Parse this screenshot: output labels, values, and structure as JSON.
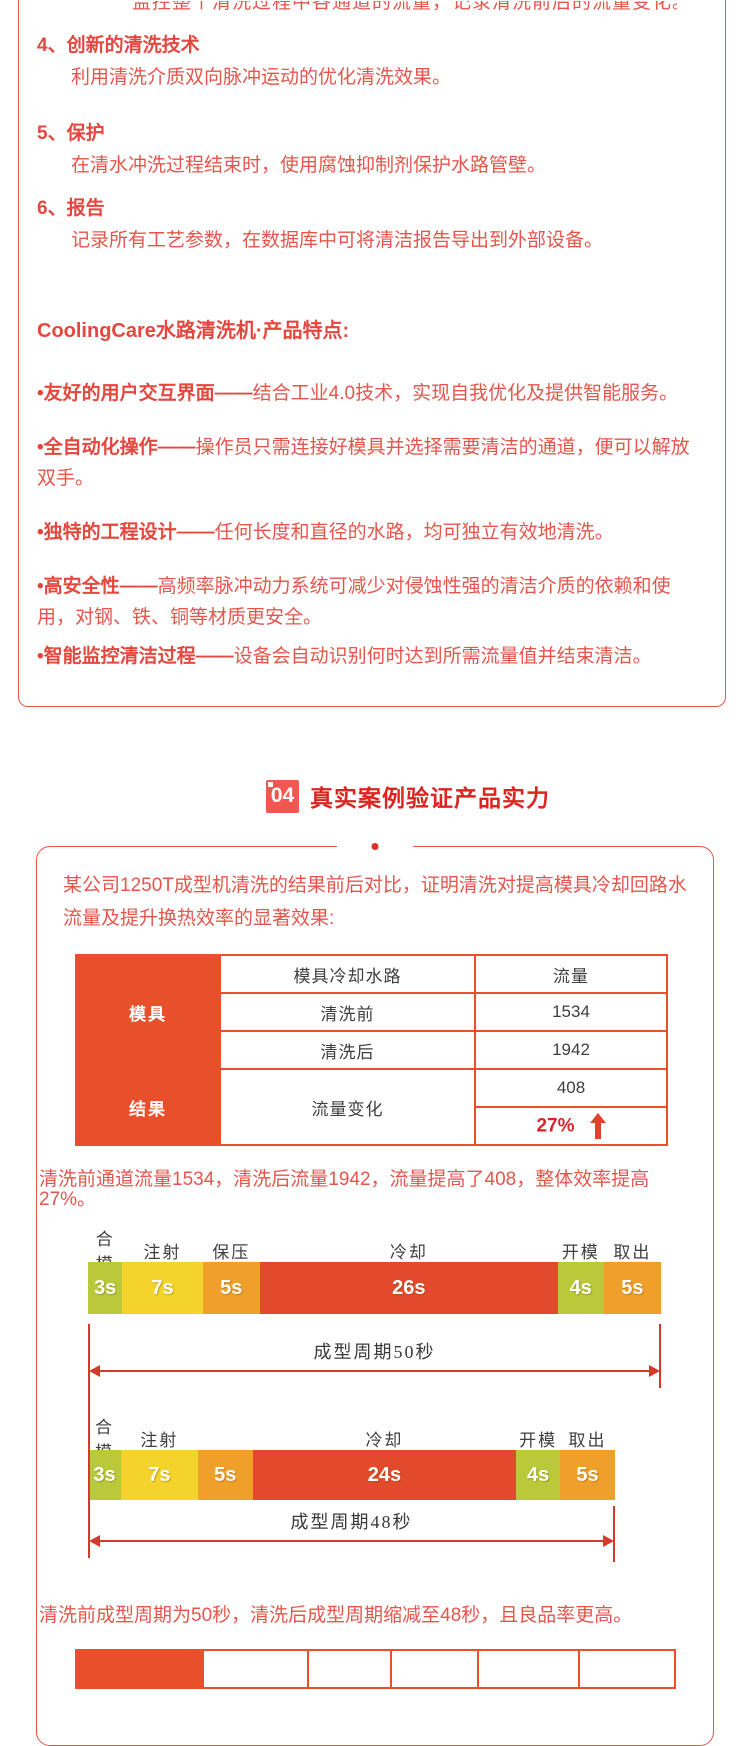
{
  "colors": {
    "accent_red": "#e8502b",
    "body_text_red": "#e4564c",
    "border_red": "#e2574e",
    "badge_red": "#f15750",
    "section_title_red": "#dc2420",
    "percent_red": "#d8232e",
    "gantt_green": "#b9c93a",
    "gantt_yellow": "#f4d32d",
    "gantt_orange": "#efa02b",
    "gantt_red": "#e24a2b"
  },
  "box1": {
    "clipped_line": "监控整个清洗过程中各通道的流量，记录清洗前后的流量变化。",
    "items": [
      {
        "title": "4、创新的清洗技术",
        "body": "利用清洗介质双向脉冲运动的优化清洗效果。"
      },
      {
        "title": "5、保护",
        "body": "在清水冲洗过程结束时，使用腐蚀抑制剂保护水路管壁。"
      },
      {
        "title": "6、报告",
        "body": "记录所有工艺参数，在数据库中可将清洁报告导出到外部设备。"
      }
    ],
    "features_title": "CoolingCare水路清洗机·产品特点:",
    "features": [
      {
        "lead": "•友好的用户交互界面——",
        "rest": "结合工业4.0技术，实现自我优化及提供智能服务。"
      },
      {
        "lead": "•全自动化操作——",
        "rest": "操作员只需连接好模具并选择需要清洁的通道，便可以解放双手。"
      },
      {
        "lead": "•独特的工程设计——",
        "rest": "任何长度和直径的水路，均可独立有效地清洗。"
      },
      {
        "lead": "•高安全性——",
        "rest": "高频率脉冲动力系统可减少对侵蚀性强的清洁介质的依赖和使用，对钢、铁、铜等材质更安全。"
      },
      {
        "lead": "•智能监控清洁过程——",
        "rest": "设备会自动识别何时达到所需流量值并结束清洁。"
      }
    ]
  },
  "section_header": {
    "badge": "04",
    "title": "真实案例验证产品实力"
  },
  "case_box": {
    "intro": "某公司1250T成型机清洗的结果前后对比，证明清洗对提高模具冷却回路水流量及提升换热效率的显著效果:",
    "flow_summary": "清洗前通道流量1534，清洗后流量1942，流量提高了408，整体效率提高27%。",
    "cycle_summary": "清洗前成型周期为50秒，清洗后成型周期缩减至48秒，且良品率更高。"
  },
  "chart_data": [
    {
      "type": "table",
      "cells": {
        "g1": "模具",
        "g2": "结果",
        "col_mid_header": "模具冷却水路",
        "col_right_header": "流量",
        "before_label": "清洗前",
        "before_value": "1534",
        "after_label": "清洗后",
        "after_value": "1942",
        "change_label": "流量变化",
        "change_value": "408",
        "change_pct": "27%"
      },
      "summary": "清洗前流量1534，清洗后流量1942，流量变化408，提升27%"
    },
    {
      "type": "gantt",
      "title": "成型周期50秒",
      "total_seconds": 50,
      "segments": [
        {
          "label": "合模",
          "seconds": 3,
          "time": "3s",
          "color": "#b9c93a"
        },
        {
          "label": "注射",
          "seconds": 7,
          "time": "7s",
          "color": "#f4d32d"
        },
        {
          "label": "保压",
          "seconds": 5,
          "time": "5s",
          "color": "#efa02b"
        },
        {
          "label": "冷却",
          "seconds": 26,
          "time": "26s",
          "color": "#e24a2b"
        },
        {
          "label": "开模",
          "seconds": 4,
          "time": "4s",
          "color": "#b9c93a"
        },
        {
          "label": "取出",
          "seconds": 5,
          "time": "5s",
          "color": "#efa02b"
        }
      ]
    },
    {
      "type": "gantt",
      "title": "成型周期48秒",
      "total_seconds": 48,
      "segments": [
        {
          "label": "合模",
          "seconds": 3,
          "time": "3s",
          "color": "#b9c93a"
        },
        {
          "label": "注射",
          "seconds": 7,
          "time": "7s",
          "color": "#f4d32d"
        },
        {
          "label": "",
          "seconds": 5,
          "time": "5s",
          "color": "#efa02b"
        },
        {
          "label": "冷却",
          "seconds": 24,
          "time": "24s",
          "color": "#e24a2b"
        },
        {
          "label": "开模",
          "seconds": 4,
          "time": "4s",
          "color": "#b9c93a"
        },
        {
          "label": "取出",
          "seconds": 5,
          "time": "5s",
          "color": "#efa02b"
        }
      ]
    }
  ]
}
